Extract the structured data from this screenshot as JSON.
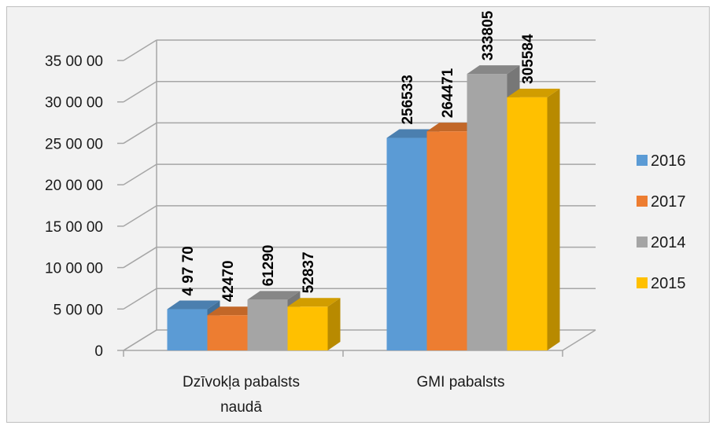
{
  "chart_data": {
    "type": "bar",
    "title": "",
    "xlabel": "",
    "ylabel": "",
    "categories": [
      "Dzīvokļa pabalsts naudā",
      "GMI pabalsts"
    ],
    "category_lines": [
      [
        "Dzīvokļa pabalsts",
        "naudā"
      ],
      [
        "GMI pabalsts"
      ]
    ],
    "series": [
      {
        "name": "2016",
        "color": "#5b9bd5",
        "values": [
          49770,
          256533
        ],
        "labels": [
          "4 97 70",
          "256533"
        ]
      },
      {
        "name": "2017",
        "color": "#ed7d31",
        "values": [
          42470,
          264471
        ],
        "labels": [
          "42470",
          "264471"
        ]
      },
      {
        "name": "2014",
        "color": "#a5a5a5",
        "values": [
          61290,
          333805
        ],
        "labels": [
          "61290",
          "333805"
        ]
      },
      {
        "name": "2015",
        "color": "#ffc000",
        "values": [
          52837,
          305584
        ],
        "labels": [
          "52837",
          "305584"
        ]
      }
    ],
    "ylim": [
      0,
      350000
    ],
    "yticks": [
      0,
      50000,
      100000,
      150000,
      200000,
      250000,
      300000,
      350000
    ],
    "ytick_labels": [
      "0",
      "5 00 00",
      "10 00 00",
      "15 00 00",
      "20 00 00",
      "25 00 00",
      "30 00 00",
      "35 00 00"
    ],
    "grid": true,
    "three_d": true,
    "legend": {
      "position": "right",
      "items": [
        "2016",
        "2017",
        "2014",
        "2015"
      ]
    }
  }
}
